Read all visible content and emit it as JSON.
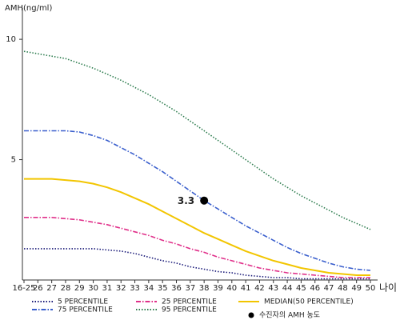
{
  "chart_data": {
    "type": "line",
    "y_label": "AMH(ng/ml)",
    "x_label": "나이",
    "categories": [
      "16-25",
      "26",
      "27",
      "28",
      "29",
      "30",
      "31",
      "32",
      "33",
      "34",
      "35",
      "36",
      "37",
      "38",
      "39",
      "40",
      "41",
      "42",
      "43",
      "44",
      "45",
      "46",
      "47",
      "48",
      "49",
      "50"
    ],
    "ylim": [
      0,
      11.3
    ],
    "yticks": [
      5,
      10
    ],
    "series": [
      {
        "name": "5 PERCENTILE",
        "color": "#1c1c7a",
        "dash": "dotted",
        "values": [
          1.3,
          1.3,
          1.3,
          1.3,
          1.3,
          1.3,
          1.25,
          1.2,
          1.1,
          0.95,
          0.8,
          0.7,
          0.55,
          0.45,
          0.35,
          0.3,
          0.2,
          0.15,
          0.1,
          0.1,
          0.05,
          0.05,
          0.05,
          0.05,
          0.05,
          0.05
        ]
      },
      {
        "name": "25 PERCENTILE",
        "color": "#e0308a",
        "dash": "dashdot",
        "values": [
          2.6,
          2.6,
          2.6,
          2.55,
          2.5,
          2.4,
          2.3,
          2.15,
          2.0,
          1.85,
          1.65,
          1.5,
          1.3,
          1.15,
          0.95,
          0.8,
          0.65,
          0.5,
          0.4,
          0.3,
          0.25,
          0.2,
          0.15,
          0.1,
          0.1,
          0.1
        ]
      },
      {
        "name": "MEDIAN(50 PERCENTILE)",
        "color": "#f2c500",
        "dash": "solid",
        "values": [
          4.2,
          4.2,
          4.2,
          4.15,
          4.1,
          4.0,
          3.85,
          3.65,
          3.4,
          3.15,
          2.85,
          2.55,
          2.25,
          1.95,
          1.7,
          1.45,
          1.2,
          1.0,
          0.8,
          0.65,
          0.5,
          0.4,
          0.3,
          0.25,
          0.2,
          0.2
        ]
      },
      {
        "name": "75 PERCENTILE",
        "color": "#3a5fcd",
        "dash": "dashdot",
        "values": [
          6.2,
          6.2,
          6.2,
          6.2,
          6.15,
          6.0,
          5.8,
          5.5,
          5.2,
          4.85,
          4.5,
          4.1,
          3.7,
          3.3,
          2.95,
          2.6,
          2.25,
          1.95,
          1.65,
          1.35,
          1.1,
          0.9,
          0.7,
          0.55,
          0.45,
          0.4
        ]
      },
      {
        "name": "95 PERCENTILE",
        "color": "#2e7d4f",
        "dash": "dotted",
        "values": [
          9.5,
          9.4,
          9.3,
          9.2,
          9.0,
          8.8,
          8.55,
          8.3,
          8.0,
          7.7,
          7.35,
          7.0,
          6.6,
          6.2,
          5.8,
          5.4,
          5.0,
          4.6,
          4.2,
          3.85,
          3.5,
          3.2,
          2.9,
          2.6,
          2.35,
          2.1
        ]
      }
    ],
    "point": {
      "name": "수진자의 AMH 농도",
      "x": "38",
      "value": 3.3,
      "color": "#000000"
    }
  }
}
